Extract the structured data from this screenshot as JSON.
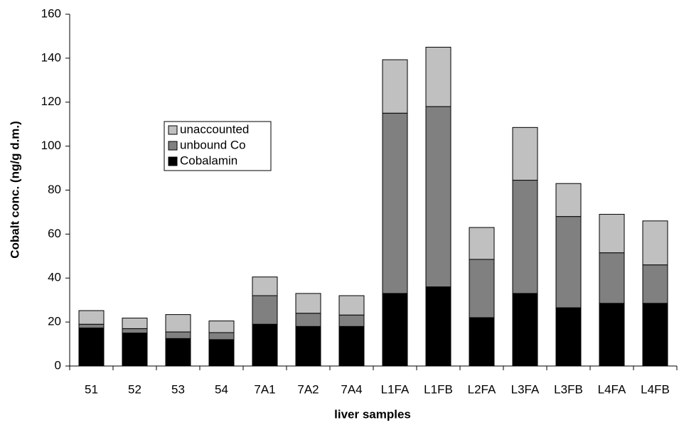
{
  "chart_data": {
    "type": "stacked_bar",
    "x_label": "liver samples",
    "y_label": "Cobalt conc. (ng/g d.m.)",
    "categories": [
      "51",
      "52",
      "53",
      "54",
      "7A1",
      "7A2",
      "7A4",
      "L1FA",
      "L1FB",
      "L2FA",
      "L3FA",
      "L3FB",
      "L4FA",
      "L4FB"
    ],
    "series": [
      {
        "name": "Cobalamin",
        "color": "#000000",
        "values": [
          17.3,
          15,
          12.5,
          12,
          19,
          18,
          18,
          33,
          36,
          22,
          33,
          26.5,
          28.5,
          28.5
        ]
      },
      {
        "name": "unbound Co",
        "color": "#808080",
        "values": [
          1.7,
          2,
          3,
          3.2,
          13,
          6,
          5.2,
          82,
          82,
          26.5,
          51.5,
          41.5,
          23,
          17.5
        ]
      },
      {
        "name": "unaccounted",
        "color": "#c0c0c0",
        "values": [
          6.2,
          4.8,
          7.9,
          5.3,
          8.5,
          9,
          8.8,
          24.3,
          27,
          14.5,
          24,
          15,
          17.5,
          20
        ]
      }
    ],
    "ylim": [
      0,
      160
    ],
    "yticks": [
      0,
      20,
      40,
      60,
      80,
      100,
      120,
      140,
      160
    ],
    "grid": false
  }
}
